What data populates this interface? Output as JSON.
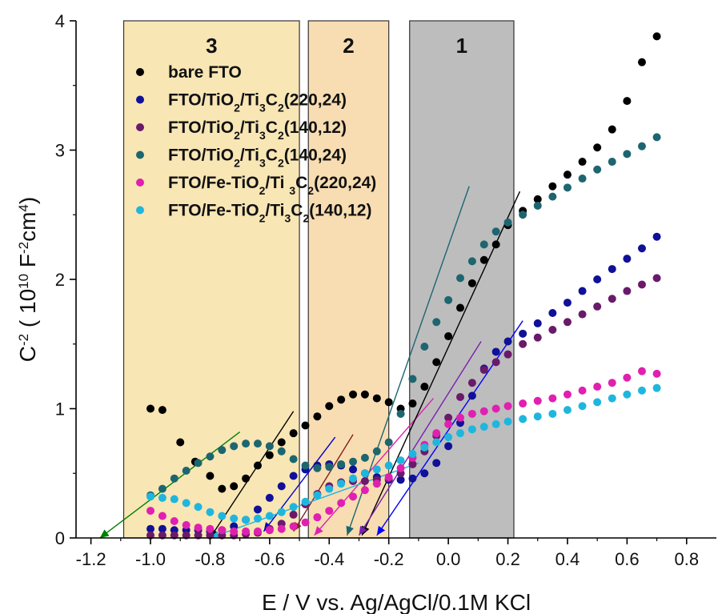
{
  "chart_data": {
    "type": "scatter",
    "title": "",
    "xlabel": "E / V vs. Ag/AgCl/0.1M KCl",
    "ylabel": {
      "main": "C",
      "sup1": "-2",
      "open": " ( 10",
      "sup2": "10",
      "unit1": " F",
      "sup3": "-2",
      "unit2": "cm",
      "sup4": "4",
      "close": ")"
    },
    "xlim": [
      -1.25,
      0.9
    ],
    "ylim": [
      0,
      4
    ],
    "xticks": [
      -1.2,
      -1.0,
      -0.8,
      -0.6,
      -0.4,
      -0.2,
      0.0,
      0.2,
      0.4,
      0.6,
      0.8
    ],
    "xtick_labels": [
      "-1.2",
      "-1.0",
      "-0.8",
      "-0.6",
      "-0.4",
      "-0.2",
      "0.0",
      "0.2",
      "0.4",
      "0.6",
      "0.8"
    ],
    "yticks": [
      0,
      1,
      2,
      3,
      4
    ],
    "ytick_labels": [
      "0",
      "1",
      "2",
      "3",
      "4"
    ],
    "grid": false,
    "legend_position": "top-left",
    "regions": [
      {
        "label": "3",
        "x0": -1.09,
        "x1": -0.5,
        "color": "#f8e6b5"
      },
      {
        "label": "2",
        "x0": -0.47,
        "x1": -0.2,
        "color": "#f8ddb2"
      },
      {
        "label": "1",
        "x0": -0.13,
        "x1": 0.22,
        "color": "#bdbdbd"
      }
    ],
    "series": [
      {
        "name": "bare FTO",
        "legend": [
          {
            "t": "bare FTO"
          }
        ],
        "color": "#000000",
        "x": [
          -1.0,
          -0.96,
          -0.9,
          -0.85,
          -0.8,
          -0.76,
          -0.72,
          -0.68,
          -0.64,
          -0.6,
          -0.56,
          -0.52,
          -0.48,
          -0.44,
          -0.4,
          -0.36,
          -0.32,
          -0.28,
          -0.24,
          -0.2,
          -0.16,
          -0.12,
          -0.08,
          -0.04,
          0.0,
          0.04,
          0.08,
          0.12,
          0.16,
          0.2,
          0.25,
          0.3,
          0.35,
          0.4,
          0.45,
          0.5,
          0.55,
          0.6,
          0.65,
          0.7
        ],
        "y": [
          1.0,
          0.99,
          0.74,
          0.59,
          0.48,
          0.38,
          0.4,
          0.46,
          0.56,
          0.64,
          0.74,
          0.81,
          0.87,
          0.94,
          1.02,
          1.07,
          1.11,
          1.11,
          1.08,
          1.05,
          1.0,
          1.04,
          1.17,
          1.36,
          1.56,
          1.78,
          1.97,
          2.15,
          2.27,
          2.42,
          2.53,
          2.62,
          2.72,
          2.81,
          2.91,
          3.02,
          3.16,
          3.38,
          3.68,
          3.88
        ]
      },
      {
        "name": "FTO/TiO2/Ti3C2(220,24)",
        "legend": [
          {
            "t": "FTO/TiO"
          },
          {
            "t": "2",
            "s": "sub"
          },
          {
            "t": "/Ti"
          },
          {
            "t": "3",
            "s": "sub"
          },
          {
            "t": "C"
          },
          {
            "t": "2",
            "s": "sub"
          },
          {
            "t": "(220,24)"
          }
        ],
        "color": "#101098",
        "x": [
          -1.0,
          -0.96,
          -0.92,
          -0.88,
          -0.84,
          -0.8,
          -0.76,
          -0.72,
          -0.68,
          -0.64,
          -0.6,
          -0.56,
          -0.52,
          -0.48,
          -0.44,
          -0.4,
          -0.36,
          -0.32,
          -0.28,
          -0.24,
          -0.2,
          -0.16,
          -0.12,
          -0.08,
          -0.04,
          0.0,
          0.04,
          0.08,
          0.12,
          0.16,
          0.2,
          0.25,
          0.3,
          0.35,
          0.4,
          0.45,
          0.5,
          0.55,
          0.6,
          0.65,
          0.7
        ],
        "y": [
          0.07,
          0.07,
          0.06,
          0.06,
          0.06,
          0.05,
          0.06,
          0.09,
          0.14,
          0.22,
          0.31,
          0.4,
          0.48,
          0.53,
          0.56,
          0.57,
          0.56,
          0.53,
          0.5,
          0.47,
          0.45,
          0.45,
          0.46,
          0.5,
          0.58,
          0.71,
          0.89,
          1.1,
          1.31,
          1.44,
          1.52,
          1.58,
          1.66,
          1.74,
          1.82,
          1.91,
          2.0,
          2.08,
          2.16,
          2.24,
          2.33
        ]
      },
      {
        "name": "FTO/TiO2/Ti3C2(140,12)",
        "legend": [
          {
            "t": "FTO/TiO"
          },
          {
            "t": "2",
            "s": "sub"
          },
          {
            "t": "/Ti"
          },
          {
            "t": "3",
            "s": "sub"
          },
          {
            "t": "C"
          },
          {
            "t": "2",
            "s": "sub"
          },
          {
            "t": "(140,12)"
          }
        ],
        "color": "#6a1a6a",
        "x": [
          -1.0,
          -0.96,
          -0.92,
          -0.88,
          -0.84,
          -0.8,
          -0.76,
          -0.72,
          -0.68,
          -0.64,
          -0.6,
          -0.56,
          -0.52,
          -0.48,
          -0.44,
          -0.4,
          -0.36,
          -0.32,
          -0.28,
          -0.24,
          -0.2,
          -0.16,
          -0.12,
          -0.08,
          -0.04,
          0.0,
          0.04,
          0.08,
          0.12,
          0.16,
          0.2,
          0.25,
          0.3,
          0.35,
          0.4,
          0.45,
          0.5,
          0.55,
          0.6,
          0.65,
          0.7
        ],
        "y": [
          0.02,
          0.02,
          0.02,
          0.02,
          0.02,
          0.02,
          0.02,
          0.02,
          0.03,
          0.04,
          0.07,
          0.11,
          0.18,
          0.26,
          0.34,
          0.4,
          0.43,
          0.44,
          0.44,
          0.45,
          0.46,
          0.5,
          0.57,
          0.67,
          0.79,
          0.93,
          1.09,
          1.2,
          1.3,
          1.36,
          1.42,
          1.5,
          1.55,
          1.61,
          1.67,
          1.73,
          1.79,
          1.85,
          1.91,
          1.96,
          2.01
        ]
      },
      {
        "name": "FTO/TiO2/Ti3C2(140,24)",
        "legend": [
          {
            "t": "FTO/TiO"
          },
          {
            "t": "2",
            "s": "sub"
          },
          {
            "t": "/Ti"
          },
          {
            "t": "3",
            "s": "sub"
          },
          {
            "t": "C"
          },
          {
            "t": "2",
            "s": "sub"
          },
          {
            "t": "(140,24)"
          }
        ],
        "color": "#1d6670",
        "x": [
          -1.0,
          -0.96,
          -0.92,
          -0.88,
          -0.84,
          -0.8,
          -0.76,
          -0.72,
          -0.68,
          -0.64,
          -0.6,
          -0.56,
          -0.52,
          -0.48,
          -0.44,
          -0.4,
          -0.36,
          -0.32,
          -0.28,
          -0.24,
          -0.2,
          -0.16,
          -0.12,
          -0.08,
          -0.04,
          0.0,
          0.04,
          0.08,
          0.12,
          0.16,
          0.2,
          0.25,
          0.3,
          0.35,
          0.4,
          0.45,
          0.5,
          0.55,
          0.6,
          0.65,
          0.7
        ],
        "y": [
          0.33,
          0.38,
          0.46,
          0.52,
          0.58,
          0.63,
          0.68,
          0.71,
          0.73,
          0.73,
          0.71,
          0.67,
          0.61,
          0.56,
          0.54,
          0.55,
          0.57,
          0.59,
          0.62,
          0.67,
          0.74,
          0.96,
          1.23,
          1.48,
          1.67,
          1.84,
          2.01,
          2.14,
          2.27,
          2.37,
          2.44,
          2.5,
          2.57,
          2.64,
          2.71,
          2.78,
          2.85,
          2.91,
          2.97,
          3.03,
          3.1
        ]
      },
      {
        "name": "FTO/Fe-TiO2/Ti 3C2(220,24)",
        "legend": [
          {
            "t": "FTO/Fe-TiO"
          },
          {
            "t": "2",
            "s": "sub"
          },
          {
            "t": "/Ti "
          },
          {
            "t": "3",
            "s": "sub"
          },
          {
            "t": "C"
          },
          {
            "t": "2",
            "s": "sub"
          },
          {
            "t": "(220,24)"
          }
        ],
        "color": "#e020b0",
        "x": [
          -1.0,
          -0.96,
          -0.92,
          -0.88,
          -0.84,
          -0.8,
          -0.76,
          -0.72,
          -0.68,
          -0.64,
          -0.6,
          -0.56,
          -0.52,
          -0.48,
          -0.44,
          -0.4,
          -0.36,
          -0.32,
          -0.28,
          -0.24,
          -0.2,
          -0.16,
          -0.12,
          -0.08,
          -0.04,
          0.0,
          0.04,
          0.08,
          0.12,
          0.16,
          0.2,
          0.25,
          0.3,
          0.35,
          0.4,
          0.45,
          0.5,
          0.55,
          0.6,
          0.65,
          0.7
        ],
        "y": [
          0.21,
          0.17,
          0.13,
          0.1,
          0.08,
          0.07,
          0.06,
          0.05,
          0.05,
          0.05,
          0.06,
          0.07,
          0.09,
          0.12,
          0.16,
          0.21,
          0.27,
          0.32,
          0.37,
          0.42,
          0.47,
          0.54,
          0.62,
          0.72,
          0.81,
          0.88,
          0.93,
          0.96,
          0.98,
          1.0,
          1.02,
          1.04,
          1.06,
          1.08,
          1.11,
          1.14,
          1.17,
          1.2,
          1.24,
          1.29,
          1.27
        ]
      },
      {
        "name": "FTO/Fe-TiO2/Ti3C2(140,12)",
        "legend": [
          {
            "t": "FTO/Fe-TiO"
          },
          {
            "t": "2",
            "s": "sub"
          },
          {
            "t": "/Ti"
          },
          {
            "t": "3",
            "s": "sub"
          },
          {
            "t": "C"
          },
          {
            "t": "2",
            "s": "sub"
          },
          {
            "t": "(140,12)"
          }
        ],
        "color": "#1fb6de",
        "x": [
          -1.0,
          -0.96,
          -0.92,
          -0.88,
          -0.84,
          -0.8,
          -0.76,
          -0.72,
          -0.68,
          -0.64,
          -0.6,
          -0.56,
          -0.52,
          -0.48,
          -0.44,
          -0.4,
          -0.36,
          -0.32,
          -0.28,
          -0.24,
          -0.2,
          -0.16,
          -0.12,
          -0.08,
          -0.04,
          0.0,
          0.04,
          0.08,
          0.12,
          0.16,
          0.2,
          0.25,
          0.3,
          0.35,
          0.4,
          0.45,
          0.5,
          0.55,
          0.6,
          0.65,
          0.7
        ],
        "y": [
          0.32,
          0.31,
          0.3,
          0.27,
          0.24,
          0.2,
          0.17,
          0.15,
          0.14,
          0.15,
          0.17,
          0.2,
          0.24,
          0.28,
          0.33,
          0.38,
          0.42,
          0.46,
          0.5,
          0.53,
          0.56,
          0.6,
          0.65,
          0.7,
          0.74,
          0.78,
          0.81,
          0.84,
          0.86,
          0.88,
          0.9,
          0.92,
          0.94,
          0.96,
          0.99,
          1.02,
          1.05,
          1.08,
          1.11,
          1.14,
          1.16
        ]
      }
    ],
    "fit_lines": [
      {
        "color": "#008000",
        "x1": -1.17,
        "y1": 0.0,
        "x2": -0.7,
        "y2": 0.82,
        "arrow": true
      },
      {
        "color": "#000000",
        "x1": -0.8,
        "y1": 0.0,
        "x2": -0.52,
        "y2": 0.98,
        "arrow": true
      },
      {
        "color": "#0000cc",
        "x1": -0.62,
        "y1": 0.05,
        "x2": -0.38,
        "y2": 0.78,
        "arrow": true
      },
      {
        "color": "#802020",
        "x1": -0.52,
        "y1": 0.05,
        "x2": -0.32,
        "y2": 0.8,
        "arrow": true
      },
      {
        "color": "#e020b0",
        "x1": -0.45,
        "y1": 0.02,
        "x2": -0.05,
        "y2": 1.08,
        "arrow": true
      },
      {
        "color": "#1fb6de",
        "x1": -0.8,
        "y1": 0.0,
        "x2": -0.1,
        "y2": 0.58,
        "arrow": true
      },
      {
        "color": "#1d6670",
        "x1": -0.34,
        "y1": 0.02,
        "x2": 0.07,
        "y2": 2.72,
        "arrow": true
      },
      {
        "color": "#000000",
        "x1": -0.29,
        "y1": 0.02,
        "x2": 0.24,
        "y2": 2.68,
        "arrow": true
      },
      {
        "color": "#7a1fb0",
        "x1": -0.3,
        "y1": 0.02,
        "x2": 0.11,
        "y2": 1.52,
        "arrow": true
      },
      {
        "color": "#0000ff",
        "x1": -0.24,
        "y1": 0.02,
        "x2": 0.25,
        "y2": 1.68,
        "arrow": true
      }
    ]
  }
}
